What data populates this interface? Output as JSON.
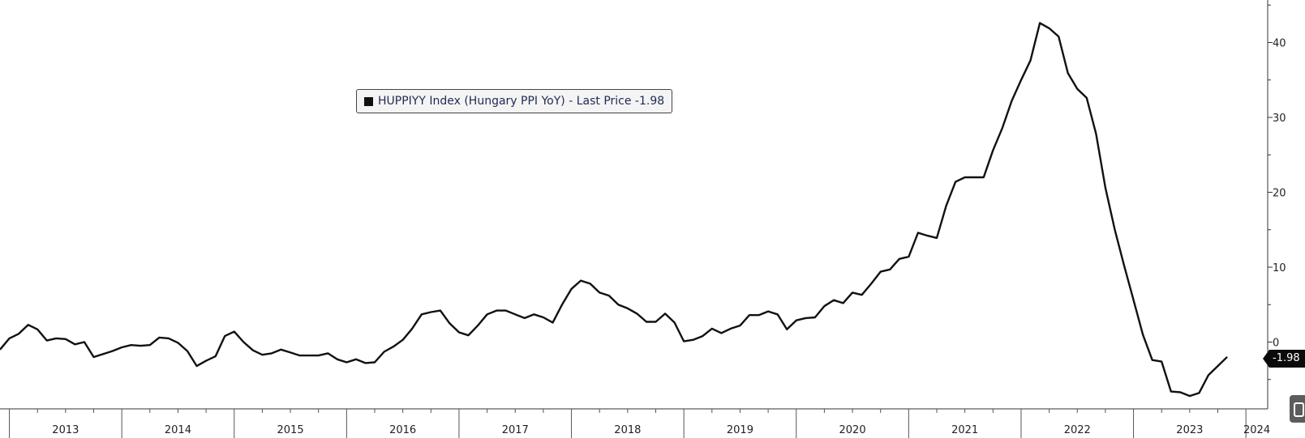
{
  "legend": {
    "swatch_color": "#111111",
    "text": "HUPPIYY Index (Hungary PPI YoY) - Last Price -1.98"
  },
  "last_price_label": "-1.98",
  "chart_data": {
    "type": "line",
    "title": "",
    "xlabel": "",
    "ylabel": "",
    "x_start": "2012-12",
    "frequency": "monthly",
    "x_tick_labels": [
      "2013",
      "2014",
      "2015",
      "2016",
      "2017",
      "2018",
      "2019",
      "2020",
      "2021",
      "2022",
      "2023",
      "2024"
    ],
    "y_ticks": [
      0,
      10,
      20,
      30,
      40
    ],
    "ylim": [
      -9,
      45
    ],
    "grid": false,
    "legend_position": "top-left",
    "series": [
      {
        "name": "HUPPIYY Index (Hungary PPI YoY)",
        "color": "#111111",
        "values": [
          -1.0,
          0.5,
          1.1,
          2.3,
          1.7,
          0.2,
          0.5,
          0.4,
          -0.3,
          0.0,
          -2.0,
          -1.6,
          -1.2,
          -0.7,
          -0.4,
          -0.5,
          -0.4,
          0.6,
          0.5,
          -0.1,
          -1.2,
          -3.2,
          -2.5,
          -1.9,
          0.8,
          1.4,
          0.0,
          -1.1,
          -1.7,
          -1.5,
          -1.0,
          -1.4,
          -1.8,
          -1.8,
          -1.8,
          -1.5,
          -2.3,
          -2.7,
          -2.3,
          -2.8,
          -2.7,
          -1.3,
          -0.6,
          0.3,
          1.8,
          3.7,
          4.0,
          4.2,
          2.5,
          1.3,
          0.9,
          2.2,
          3.7,
          4.2,
          4.2,
          3.7,
          3.2,
          3.7,
          3.3,
          2.6,
          5.0,
          7.1,
          8.2,
          7.8,
          6.6,
          6.2,
          5.0,
          4.5,
          3.8,
          2.7,
          2.7,
          3.8,
          2.6,
          0.1,
          0.3,
          0.8,
          1.8,
          1.2,
          1.8,
          2.2,
          3.6,
          3.6,
          4.1,
          3.7,
          1.7,
          2.9,
          3.2,
          3.3,
          4.8,
          5.6,
          5.2,
          6.6,
          6.3,
          7.8,
          9.4,
          9.7,
          11.1,
          11.4,
          14.6,
          14.2,
          13.9,
          18.2,
          21.4,
          22.0,
          22.0,
          22.0,
          25.6,
          28.6,
          32.2,
          35.0,
          37.6,
          42.6,
          41.9,
          40.8,
          35.9,
          33.8,
          32.6,
          27.8,
          20.6,
          15.0,
          10.2,
          5.6,
          1.0,
          -2.4,
          -2.6,
          -6.6,
          -6.7,
          -7.2,
          -6.8,
          -4.4,
          -3.2,
          -1.98
        ]
      }
    ]
  }
}
